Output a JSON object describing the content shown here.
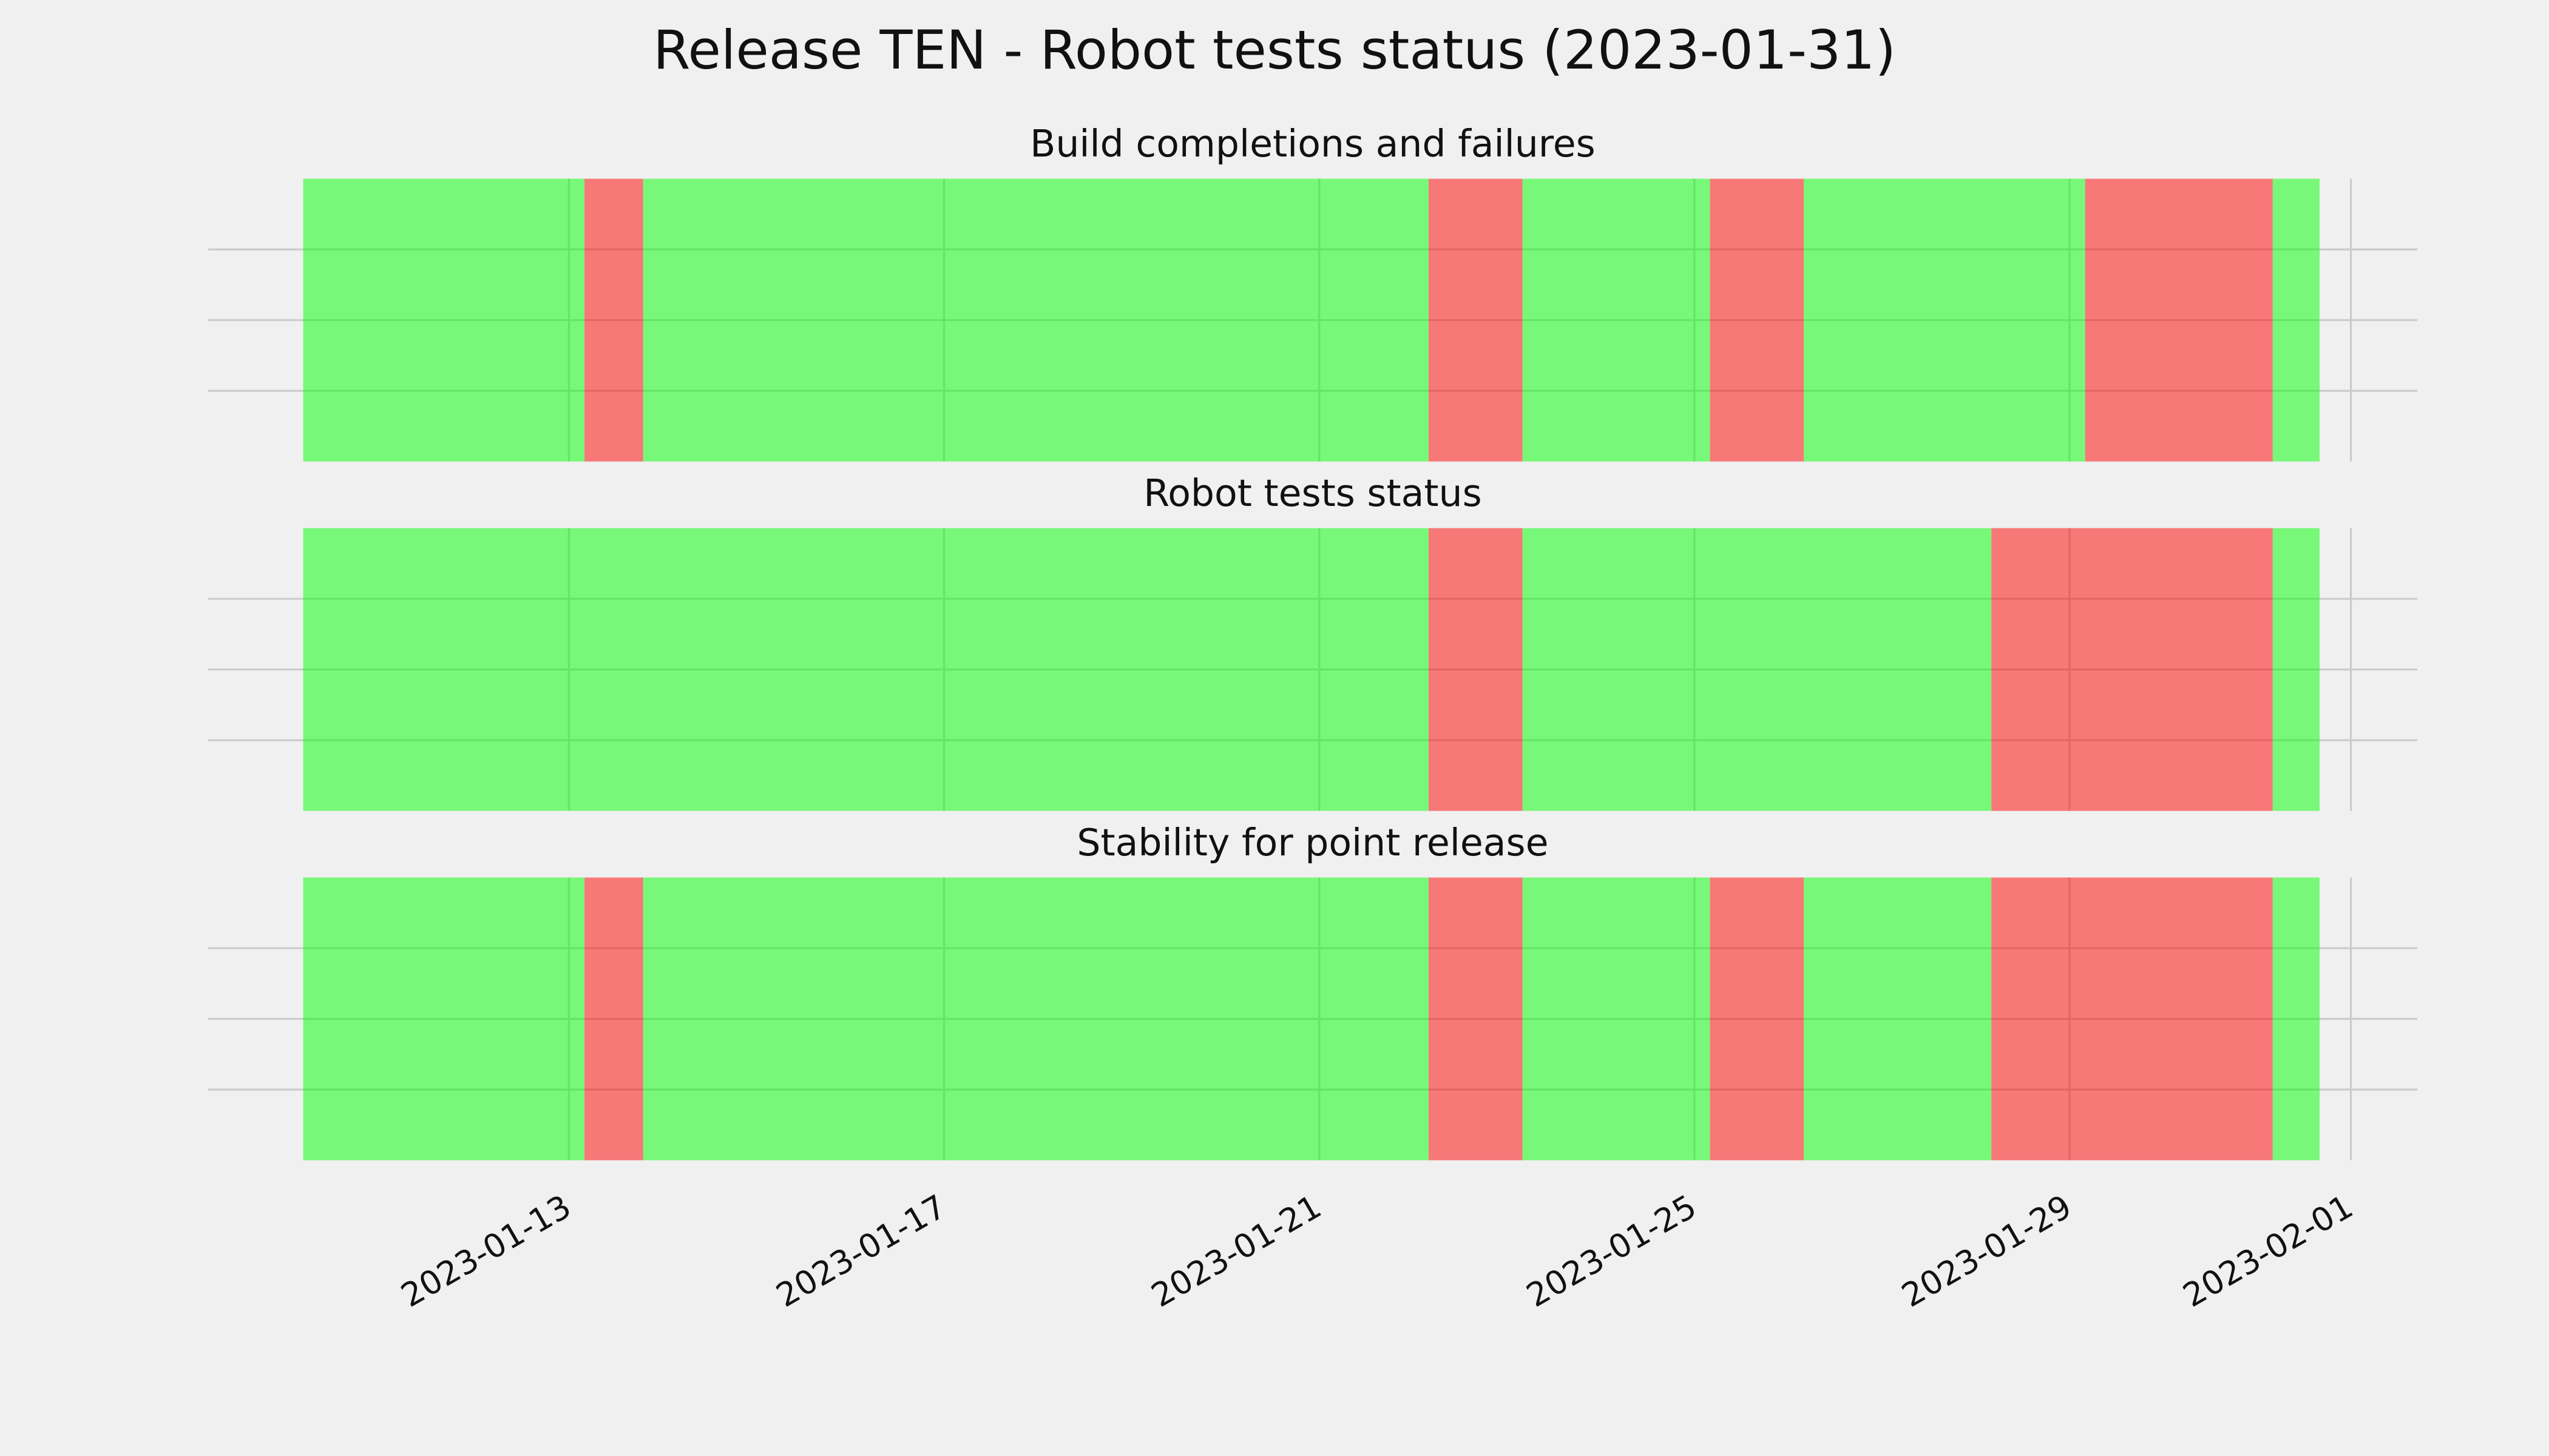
{
  "title": "Release TEN - Robot tests status (2023-01-31)",
  "chart_data": [
    {
      "type": "timeline",
      "title": "Build completions and failures",
      "segments": [
        {
          "start": "2023-01-10T04:00",
          "end": "2023-01-13T04:00",
          "color": "#00ff00"
        },
        {
          "start": "2023-01-13T04:00",
          "end": "2023-01-13T19:00",
          "color": "#ff0000"
        },
        {
          "start": "2023-01-13T19:00",
          "end": "2023-01-22T04:00",
          "color": "#00ff00"
        },
        {
          "start": "2023-01-22T04:00",
          "end": "2023-01-23T04:00",
          "color": "#ff0000"
        },
        {
          "start": "2023-01-23T04:00",
          "end": "2023-01-25T04:00",
          "color": "#00ff00"
        },
        {
          "start": "2023-01-25T04:00",
          "end": "2023-01-26T04:00",
          "color": "#ff0000"
        },
        {
          "start": "2023-01-26T04:00",
          "end": "2023-01-29T04:00",
          "color": "#00ff00"
        },
        {
          "start": "2023-01-29T04:00",
          "end": "2023-01-31T04:00",
          "color": "#ff0000"
        },
        {
          "start": "2023-01-31T04:00",
          "end": "2023-01-31T16:00",
          "color": "#00ff00"
        }
      ],
      "alpha": 0.5,
      "xlim": [
        "2023-01-09T03:40",
        "2023-02-01T17:00"
      ],
      "xticks": [
        "2023-01-13",
        "2023-01-17",
        "2023-01-21",
        "2023-01-25",
        "2023-01-29",
        "2023-02-01"
      ],
      "ylim": [
        0,
        1
      ],
      "yticks": [
        0.25,
        0.5,
        0.75
      ],
      "grid": true
    },
    {
      "type": "timeline",
      "title": "Robot tests status",
      "segments": [
        {
          "start": "2023-01-10T04:00",
          "end": "2023-01-22T04:00",
          "color": "#00ff00"
        },
        {
          "start": "2023-01-22T04:00",
          "end": "2023-01-23T04:00",
          "color": "#ff0000"
        },
        {
          "start": "2023-01-23T04:00",
          "end": "2023-01-28T04:00",
          "color": "#00ff00"
        },
        {
          "start": "2023-01-28T04:00",
          "end": "2023-01-31T04:00",
          "color": "#ff0000"
        },
        {
          "start": "2023-01-31T04:00",
          "end": "2023-01-31T16:00",
          "color": "#00ff00"
        }
      ],
      "alpha": 0.5,
      "xlim": [
        "2023-01-09T03:40",
        "2023-02-01T17:00"
      ],
      "xticks": [
        "2023-01-13",
        "2023-01-17",
        "2023-01-21",
        "2023-01-25",
        "2023-01-29",
        "2023-02-01"
      ],
      "ylim": [
        0,
        1
      ],
      "yticks": [
        0.25,
        0.5,
        0.75
      ],
      "grid": true
    },
    {
      "type": "timeline",
      "title": "Stability for point release",
      "segments": [
        {
          "start": "2023-01-10T04:00",
          "end": "2023-01-13T04:00",
          "color": "#00ff00"
        },
        {
          "start": "2023-01-13T04:00",
          "end": "2023-01-13T19:00",
          "color": "#ff0000"
        },
        {
          "start": "2023-01-13T19:00",
          "end": "2023-01-22T04:00",
          "color": "#00ff00"
        },
        {
          "start": "2023-01-22T04:00",
          "end": "2023-01-23T04:00",
          "color": "#ff0000"
        },
        {
          "start": "2023-01-23T04:00",
          "end": "2023-01-25T04:00",
          "color": "#00ff00"
        },
        {
          "start": "2023-01-25T04:00",
          "end": "2023-01-26T04:00",
          "color": "#ff0000"
        },
        {
          "start": "2023-01-26T04:00",
          "end": "2023-01-28T04:00",
          "color": "#00ff00"
        },
        {
          "start": "2023-01-28T04:00",
          "end": "2023-01-31T04:00",
          "color": "#ff0000"
        },
        {
          "start": "2023-01-31T04:00",
          "end": "2023-01-31T16:00",
          "color": "#00ff00"
        }
      ],
      "alpha": 0.5,
      "xlim": [
        "2023-01-09T03:40",
        "2023-02-01T17:00"
      ],
      "xticks": [
        "2023-01-13",
        "2023-01-17",
        "2023-01-21",
        "2023-01-25",
        "2023-01-29",
        "2023-02-01"
      ],
      "ylim": [
        0,
        1
      ],
      "yticks": [
        0.25,
        0.5,
        0.75
      ],
      "grid": true
    }
  ]
}
